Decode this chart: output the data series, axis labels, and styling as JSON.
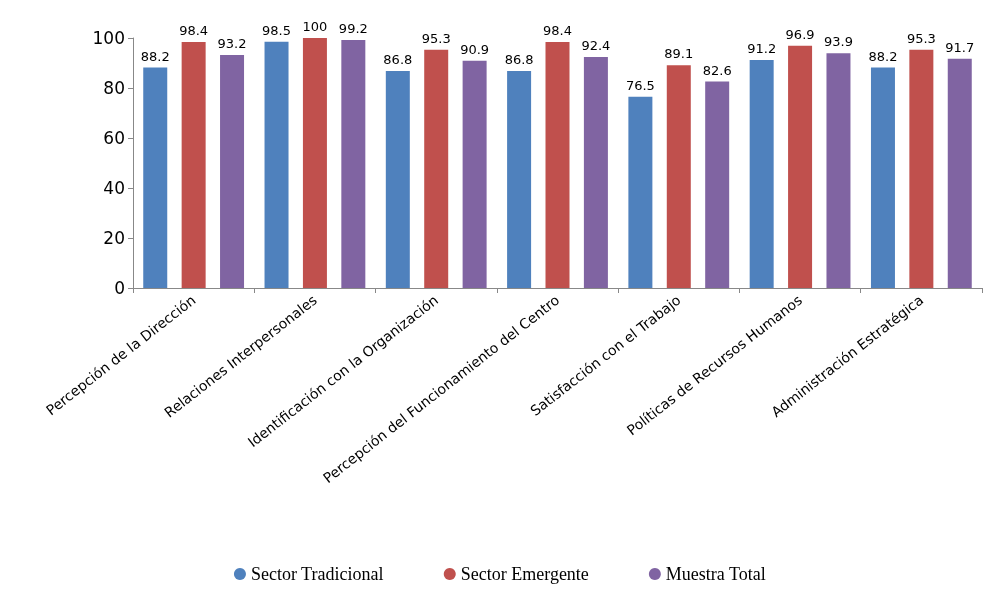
{
  "chart_data": {
    "type": "bar",
    "categories": [
      "Percepción de la Dirección",
      "Relaciones Interpersonales",
      "Identificación con la Organización",
      "Percepción del Funcionamiento del Centro",
      "Satisfacción con el Trabajo",
      "Políticas de Recursos Humanos",
      "Administración Estratégica"
    ],
    "series": [
      {
        "name": "Sector Tradicional",
        "color": "#4f81bd",
        "values": [
          88.2,
          98.5,
          86.8,
          86.8,
          76.5,
          91.2,
          88.2
        ]
      },
      {
        "name": "Sector Emergente",
        "color": "#c0504d",
        "values": [
          98.4,
          100,
          95.3,
          98.4,
          89.1,
          96.9,
          95.3
        ]
      },
      {
        "name": "Muestra Total",
        "color": "#8064a2",
        "values": [
          93.2,
          99.2,
          90.9,
          92.4,
          82.6,
          93.9,
          91.7
        ]
      }
    ],
    "ylim": [
      0,
      100
    ],
    "yticks": [
      0,
      20,
      40,
      60,
      80,
      100
    ],
    "grid": false,
    "legend": "bottom",
    "data_labels": true
  }
}
